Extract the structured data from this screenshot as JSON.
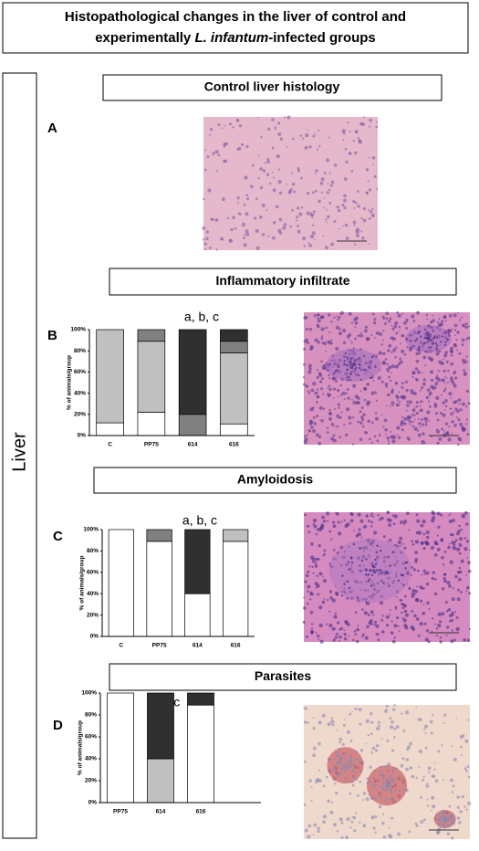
{
  "title": {
    "line1": "Histopathological changes in the liver of control and",
    "line2": [
      "experimentally ",
      "L. infantum",
      "-infected groups"
    ]
  },
  "side_label": "Liver",
  "control": {
    "heading": "Control liver histology",
    "panel": "A"
  },
  "chart_data": [
    {
      "type": "stacked_bar",
      "title": "Inflammatory infiltrate",
      "panel": "B",
      "annotation": "a, b, c",
      "ylabel": "% of animals/group",
      "categories": [
        "C",
        "PP75",
        "614",
        "616"
      ],
      "series": [
        {
          "color": "#ffffff",
          "values": [
            12,
            22,
            0,
            11
          ]
        },
        {
          "color": "#c0c0c0",
          "values": [
            88,
            67,
            0,
            67
          ]
        },
        {
          "color": "#808080",
          "values": [
            0,
            11,
            20,
            11
          ]
        },
        {
          "color": "#303030",
          "values": [
            0,
            0,
            80,
            11
          ]
        }
      ],
      "ylim": [
        0,
        100
      ],
      "yticks": [
        {
          "value": 0,
          "label": "0%"
        },
        {
          "value": 20,
          "label": "20%"
        },
        {
          "value": 40,
          "label": "40%"
        },
        {
          "value": 60,
          "label": "60%"
        },
        {
          "value": 80,
          "label": "80%"
        },
        {
          "value": 100,
          "label": "100%"
        }
      ]
    },
    {
      "type": "stacked_bar",
      "title": "Amyloidosis",
      "panel": "C",
      "annotation": "a, b, c",
      "ylabel": "% of animals/group",
      "categories": [
        "C",
        "PP75",
        "614",
        "616"
      ],
      "series": [
        {
          "color": "#ffffff",
          "values": [
            100,
            89,
            40,
            89
          ]
        },
        {
          "color": "#c0c0c0",
          "values": [
            0,
            0,
            0,
            11
          ]
        },
        {
          "color": "#808080",
          "values": [
            0,
            11,
            0,
            0
          ]
        },
        {
          "color": "#303030",
          "values": [
            0,
            0,
            60,
            0
          ]
        }
      ],
      "ylim": [
        0,
        100
      ],
      "yticks": [
        {
          "value": 0,
          "label": "0%"
        },
        {
          "value": 20,
          "label": "20%"
        },
        {
          "value": 40,
          "label": "40%"
        },
        {
          "value": 60,
          "label": "60%"
        },
        {
          "value": 80,
          "label": "80%"
        },
        {
          "value": 100,
          "label": "100%"
        }
      ]
    },
    {
      "type": "stacked_bar",
      "title": "Parasites",
      "panel": "D",
      "annotation": "b, c",
      "ylabel": "% of animals/group",
      "categories": [
        "PP75",
        "614",
        "616"
      ],
      "series": [
        {
          "color": "#ffffff",
          "values": [
            100,
            0,
            89
          ]
        },
        {
          "color": "#c0c0c0",
          "values": [
            0,
            40,
            0
          ]
        },
        {
          "color": "#303030",
          "values": [
            0,
            60,
            11
          ]
        }
      ],
      "ylim": [
        0,
        100
      ],
      "yticks": [
        {
          "value": 0,
          "label": "0%"
        },
        {
          "value": 20,
          "label": "20%"
        },
        {
          "value": 40,
          "label": "40%"
        },
        {
          "value": 60,
          "label": "60%"
        },
        {
          "value": 80,
          "label": "80%"
        },
        {
          "value": 100,
          "label": "100%"
        }
      ]
    }
  ]
}
